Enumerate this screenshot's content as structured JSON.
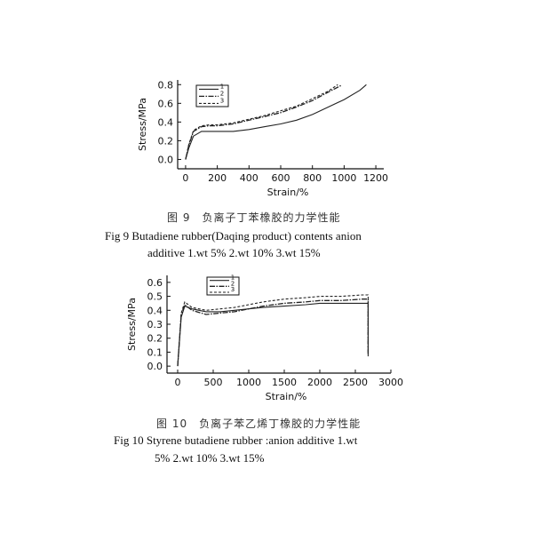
{
  "figures": [
    {
      "caption_zh": "图 9　负离子丁苯橡胶的力学性能",
      "caption_en_line1": "Fig 9 Butadiene rubber(Daqing product) contents anion",
      "caption_en_line2": "additive 1.wt 5% 2.wt 10% 3.wt 15%"
    },
    {
      "caption_zh": "图 10　负离子苯乙烯丁橡胶的力学性能",
      "caption_en_line1": "Fig 10 Styrene butadiene rubber :anion additive 1.wt",
      "caption_en_line2": "5% 2.wt 10% 3.wt 15%"
    }
  ],
  "chart_data": [
    {
      "type": "line",
      "xlabel": "Strain/%",
      "ylabel": "Stress/MPa",
      "xlim": [
        -50,
        1250
      ],
      "ylim": [
        -0.1,
        0.85
      ],
      "xticks": [
        0,
        200,
        400,
        600,
        800,
        1000,
        1200
      ],
      "yticks": [
        0.0,
        0.2,
        0.4,
        0.6,
        0.8
      ],
      "xtick_labels": [
        "0",
        "200",
        "400",
        "600",
        "800",
        "1000",
        "1200"
      ],
      "ytick_labels": [
        "0.0",
        "0.2",
        "0.4",
        "0.6",
        "0.8"
      ],
      "legend_position": "top-left",
      "series": [
        {
          "name": "1",
          "x": [
            0,
            20,
            50,
            100,
            150,
            200,
            300,
            400,
            500,
            600,
            700,
            800,
            900,
            1000,
            1100,
            1140
          ],
          "y": [
            0.0,
            0.12,
            0.25,
            0.3,
            0.3,
            0.3,
            0.3,
            0.32,
            0.35,
            0.38,
            0.42,
            0.48,
            0.56,
            0.64,
            0.74,
            0.8
          ]
        },
        {
          "name": "2",
          "x": [
            0,
            20,
            50,
            100,
            150,
            200,
            300,
            400,
            500,
            600,
            700,
            800,
            900,
            980
          ],
          "y": [
            0.0,
            0.15,
            0.3,
            0.35,
            0.36,
            0.36,
            0.38,
            0.42,
            0.46,
            0.5,
            0.56,
            0.63,
            0.72,
            0.79
          ]
        },
        {
          "name": "3",
          "x": [
            0,
            20,
            50,
            100,
            150,
            200,
            300,
            400,
            500,
            600,
            700,
            800,
            900,
            960
          ],
          "y": [
            0.0,
            0.16,
            0.31,
            0.36,
            0.37,
            0.37,
            0.39,
            0.43,
            0.47,
            0.52,
            0.57,
            0.65,
            0.73,
            0.8
          ]
        }
      ]
    },
    {
      "type": "line",
      "xlabel": "Strain/%",
      "ylabel": "Stress/MPa",
      "xlim": [
        -150,
        3000
      ],
      "ylim": [
        -0.05,
        0.65
      ],
      "xticks": [
        0,
        500,
        1000,
        1500,
        2000,
        2500,
        3000
      ],
      "yticks": [
        0.0,
        0.1,
        0.2,
        0.3,
        0.4,
        0.5,
        0.6
      ],
      "xtick_labels": [
        "0",
        "500",
        "1000",
        "1500",
        "2000",
        "2500",
        "3000"
      ],
      "ytick_labels": [
        "0.0",
        "0.1",
        "0.2",
        "0.3",
        "0.4",
        "0.5",
        "0.6"
      ],
      "legend_position": "top-center",
      "series": [
        {
          "name": "1",
          "x": [
            0,
            50,
            100,
            200,
            400,
            600,
            800,
            1000,
            1200,
            1500,
            1800,
            2000,
            2300,
            2600,
            2680,
            2680
          ],
          "y": [
            0.0,
            0.35,
            0.43,
            0.41,
            0.39,
            0.39,
            0.4,
            0.41,
            0.42,
            0.43,
            0.44,
            0.45,
            0.45,
            0.45,
            0.45,
            0.07
          ]
        },
        {
          "name": "2",
          "x": [
            0,
            50,
            100,
            200,
            400,
            600,
            800,
            1000,
            1200,
            1500,
            1800,
            2000,
            2300,
            2600,
            2680,
            2680
          ],
          "y": [
            0.0,
            0.37,
            0.44,
            0.4,
            0.37,
            0.38,
            0.39,
            0.41,
            0.43,
            0.45,
            0.46,
            0.47,
            0.47,
            0.48,
            0.48,
            0.08
          ]
        },
        {
          "name": "3",
          "x": [
            0,
            50,
            100,
            200,
            400,
            600,
            800,
            1000,
            1200,
            1500,
            1800,
            2000,
            2300,
            2600,
            2680,
            2680
          ],
          "y": [
            0.0,
            0.38,
            0.46,
            0.42,
            0.4,
            0.41,
            0.42,
            0.44,
            0.46,
            0.48,
            0.49,
            0.5,
            0.5,
            0.51,
            0.51,
            0.1
          ]
        }
      ]
    }
  ]
}
